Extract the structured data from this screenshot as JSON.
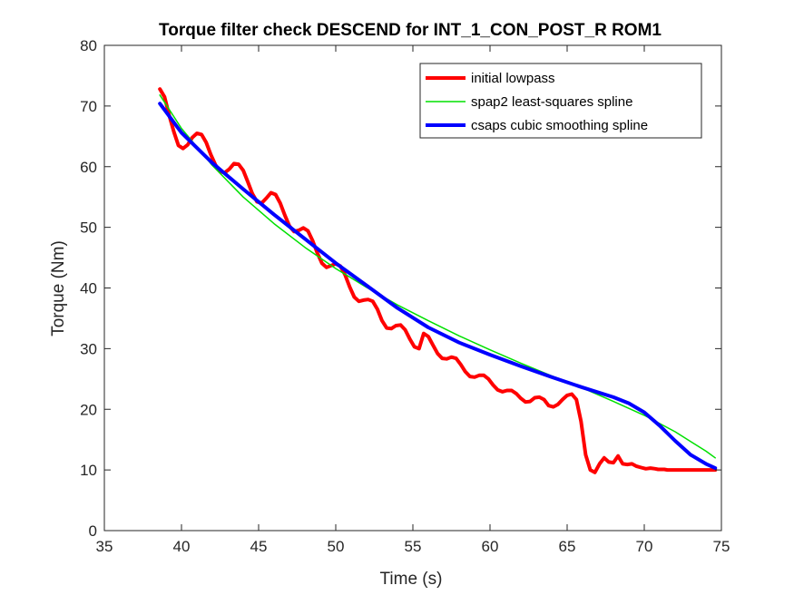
{
  "chart_data": {
    "type": "line",
    "title": "Torque filter check DESCEND for INT_1_CON_POST_R ROM1",
    "xlabel": "Time (s)",
    "ylabel": "Torque (Nm)",
    "xlim": [
      35,
      75
    ],
    "ylim": [
      0,
      80
    ],
    "xticks": [
      35,
      40,
      45,
      50,
      55,
      60,
      65,
      70,
      75
    ],
    "yticks": [
      0,
      10,
      20,
      30,
      40,
      50,
      60,
      70,
      80
    ],
    "grid": false,
    "legend_position": "top-right",
    "series": [
      {
        "name": "initial lowpass",
        "color": "#ff0000",
        "x": [
          38.6,
          38.9,
          39.2,
          39.5,
          39.8,
          40.1,
          40.4,
          40.7,
          41.0,
          41.3,
          41.6,
          41.9,
          42.2,
          42.5,
          42.8,
          43.1,
          43.4,
          43.7,
          44.0,
          44.3,
          44.6,
          44.9,
          45.2,
          45.5,
          45.8,
          46.1,
          46.4,
          46.7,
          47.0,
          47.3,
          47.6,
          47.9,
          48.2,
          48.5,
          48.8,
          49.1,
          49.4,
          49.7,
          50.0,
          50.3,
          50.6,
          50.9,
          51.2,
          51.5,
          51.8,
          52.1,
          52.4,
          52.7,
          53.0,
          53.3,
          53.6,
          53.9,
          54.2,
          54.5,
          54.8,
          55.1,
          55.4,
          55.7,
          56.0,
          56.3,
          56.6,
          56.9,
          57.2,
          57.5,
          57.8,
          58.1,
          58.4,
          58.7,
          59.0,
          59.3,
          59.6,
          59.9,
          60.2,
          60.5,
          60.8,
          61.1,
          61.4,
          61.7,
          62.0,
          62.3,
          62.6,
          62.9,
          63.2,
          63.5,
          63.8,
          64.1,
          64.4,
          64.7,
          65.0,
          65.3,
          65.6,
          65.9,
          66.2,
          66.5,
          66.8,
          67.1,
          67.4,
          67.7,
          68.0,
          68.3,
          68.6,
          68.9,
          69.2,
          69.5,
          69.8,
          70.1,
          70.4,
          70.7,
          70.9,
          71.1,
          71.3,
          71.5,
          71.7,
          71.9,
          72.1,
          72.3,
          72.5,
          72.7,
          72.9,
          73.1,
          73.3,
          73.5,
          73.7,
          73.9,
          74.1,
          74.3,
          74.6
        ],
        "y": [
          72.8,
          71.5,
          68.5,
          65.8,
          63.5,
          63.0,
          63.6,
          64.8,
          65.5,
          65.3,
          64.0,
          62.0,
          60.3,
          59.2,
          59.0,
          59.6,
          60.5,
          60.4,
          59.4,
          57.5,
          55.5,
          54.2,
          54.0,
          54.8,
          55.7,
          55.4,
          54.0,
          52.0,
          50.2,
          49.3,
          49.5,
          49.9,
          49.4,
          47.8,
          45.8,
          44.1,
          43.4,
          43.7,
          44.0,
          43.6,
          42.2,
          40.2,
          38.5,
          37.8,
          38.0,
          38.1,
          37.8,
          36.5,
          34.6,
          33.4,
          33.3,
          33.8,
          33.9,
          33.1,
          31.6,
          30.3,
          30.0,
          32.5,
          32.0,
          30.6,
          29.2,
          28.4,
          28.3,
          28.6,
          28.4,
          27.4,
          26.2,
          25.4,
          25.3,
          25.6,
          25.6,
          25.0,
          24.0,
          23.2,
          22.9,
          23.1,
          23.1,
          22.6,
          21.8,
          21.2,
          21.3,
          21.9,
          22.0,
          21.6,
          20.6,
          20.4,
          20.8,
          21.6,
          22.3,
          22.5,
          21.6,
          18.0,
          12.5,
          10.0,
          9.6,
          11.0,
          12.0,
          11.3,
          11.2,
          12.3,
          11.0,
          10.9,
          11.0,
          10.6,
          10.4,
          10.2,
          10.3,
          10.2,
          10.1,
          10.1,
          10.1,
          10.0,
          10.0,
          10.0,
          10.0,
          10.0,
          10.0,
          10.0,
          10.0,
          10.0,
          10.0,
          10.0,
          10.0,
          10.0,
          10.0,
          10.0,
          10.0
        ],
        "width": 4
      },
      {
        "name": "spap2 least-squares spline",
        "color": "#00e000",
        "x": [
          38.6,
          40,
          42,
          44,
          46,
          48,
          50,
          52,
          54,
          56,
          58,
          60,
          62,
          64,
          66,
          68,
          70,
          72,
          74,
          74.6
        ],
        "y": [
          71.8,
          66.3,
          60.2,
          55.0,
          50.6,
          46.7,
          43.2,
          40.1,
          37.2,
          34.6,
          32.1,
          29.8,
          27.6,
          25.5,
          23.5,
          21.3,
          19.0,
          16.3,
          13.1,
          12.0
        ],
        "width": 1.5
      },
      {
        "name": "csaps cubic smoothing spline",
        "color": "#0000ff",
        "x": [
          38.6,
          40,
          42,
          44,
          46,
          48,
          50,
          52,
          54,
          56,
          58,
          60,
          62,
          64,
          66,
          68,
          69,
          70,
          71,
          72,
          73,
          74,
          74.6
        ],
        "y": [
          70.4,
          65.6,
          60.6,
          56.3,
          52.1,
          48.1,
          44.1,
          40.4,
          36.7,
          33.5,
          31.0,
          29.0,
          27.1,
          25.3,
          23.6,
          22.0,
          21.0,
          19.5,
          17.3,
          14.8,
          12.5,
          11.0,
          10.3
        ],
        "width": 4
      }
    ]
  }
}
